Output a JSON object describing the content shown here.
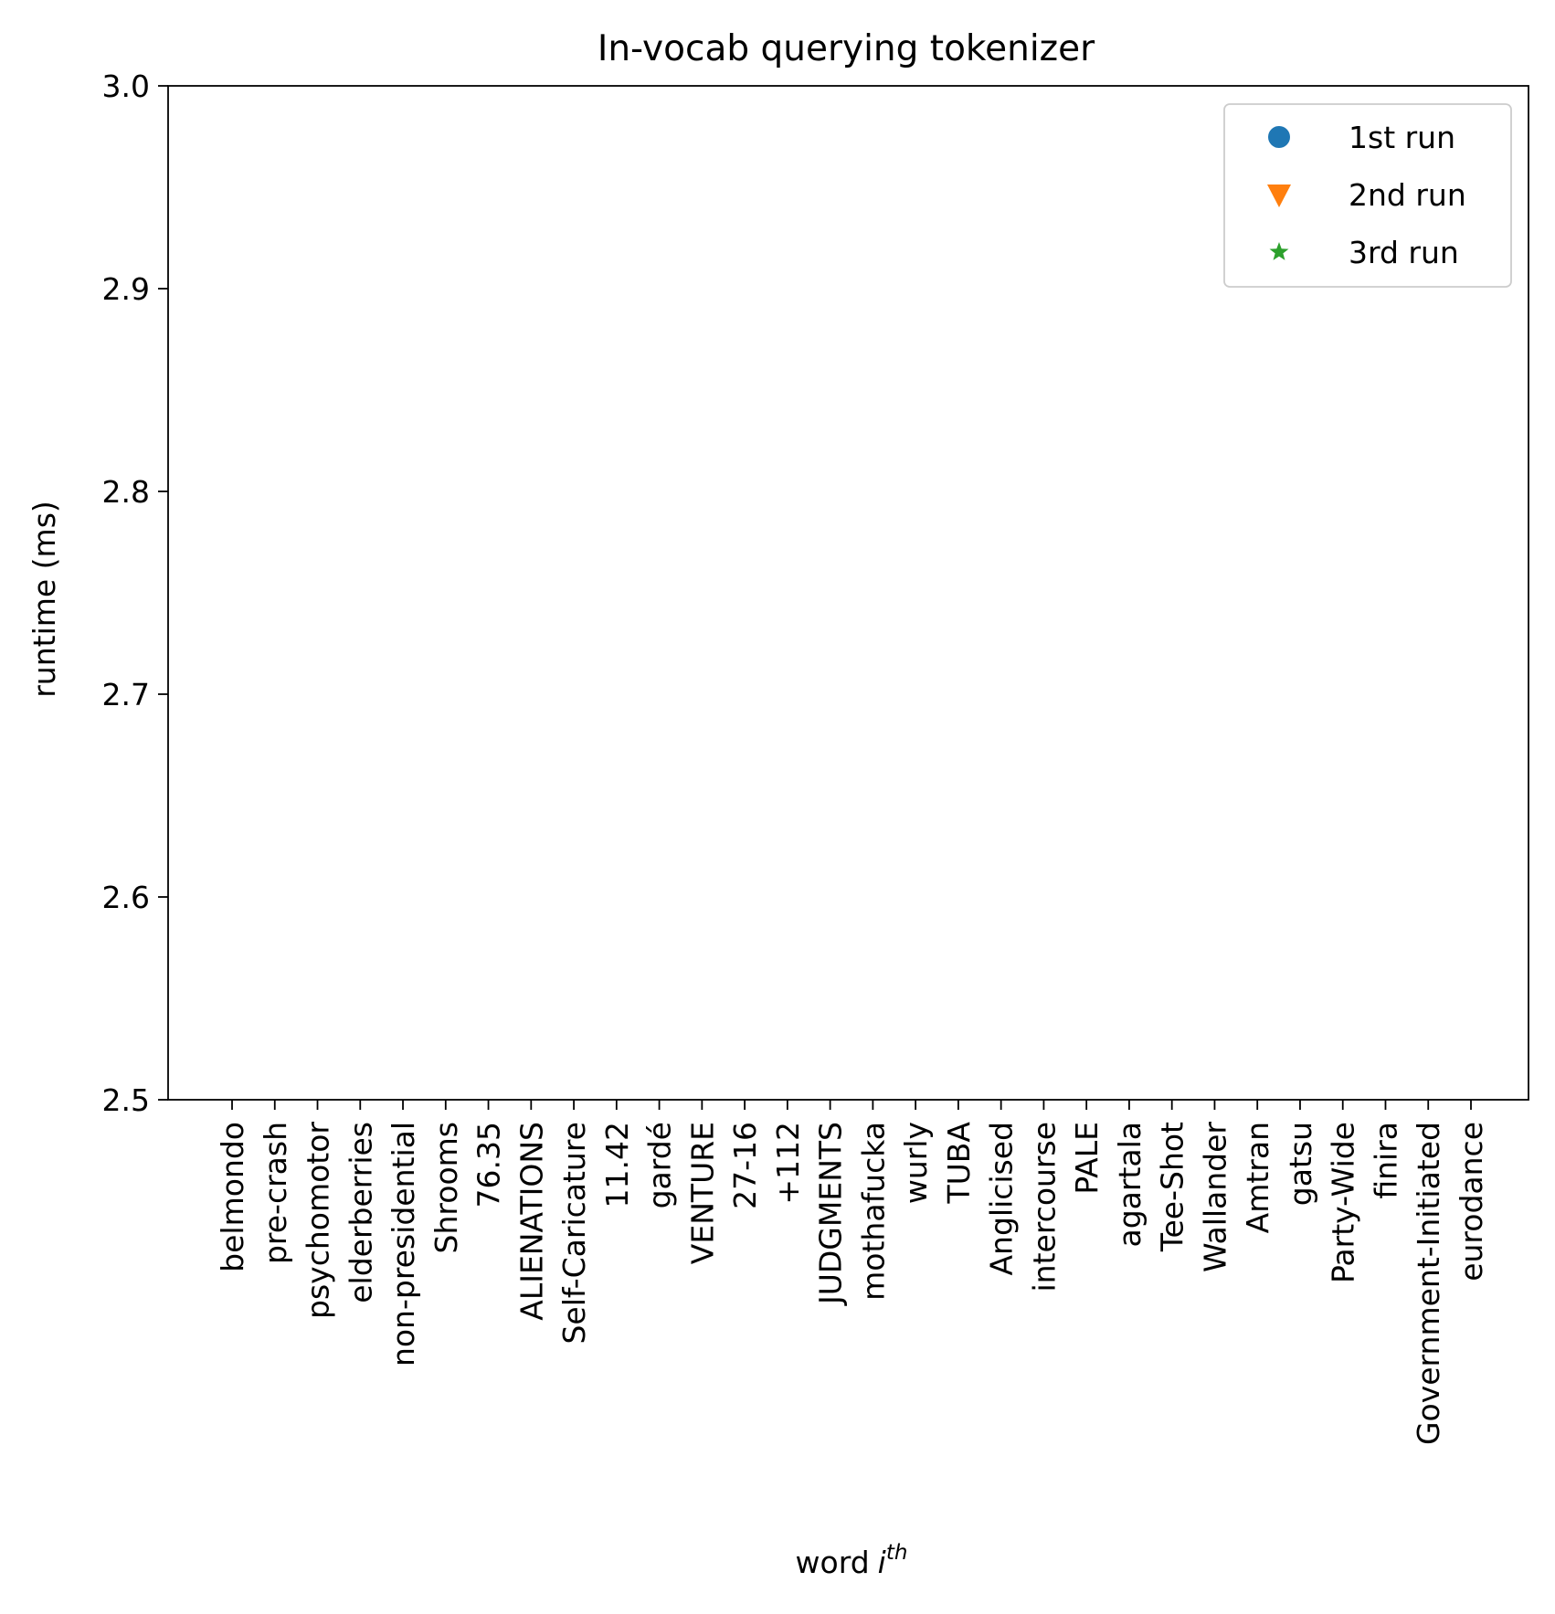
{
  "chart_data": {
    "type": "scatter",
    "title": "In-vocab querying tokenizer",
    "xlabel": "word",
    "xlabel_italic": "i",
    "xlabel_superscript": "th",
    "ylabel": "runtime (ms)",
    "ylim": [
      2.5,
      3.0
    ],
    "yticks": [
      "2.5",
      "2.6",
      "2.7",
      "2.8",
      "2.9",
      "3.0"
    ],
    "grid": false,
    "legend_position": "top-right",
    "categories": [
      "belmondo",
      "pre-crash",
      "psychomotor",
      "elderberries",
      "non-presidential",
      "Shrooms",
      "76.35",
      "ALIENATIONS",
      "Self-Caricature",
      "11.42",
      "gardé",
      "VENTURE",
      "27-16",
      "+112",
      "JUDGMENTS",
      "mothafucka",
      "wurly",
      "TUBA",
      "Anglicised",
      "intercourse",
      "PALE",
      "agartala",
      "Tee-Shot",
      "Wallander",
      "Amtran",
      "gatsu",
      "Party-Wide",
      "finira",
      "Government-Initiated",
      "eurodance"
    ],
    "series": [
      {
        "name": "1st run",
        "marker": "circle",
        "color": "#1f77b4",
        "values": []
      },
      {
        "name": "2nd run",
        "marker": "triangle-down",
        "color": "#ff7f0e",
        "values": []
      },
      {
        "name": "3rd run",
        "marker": "star",
        "color": "#2ca02c",
        "values": []
      }
    ]
  }
}
